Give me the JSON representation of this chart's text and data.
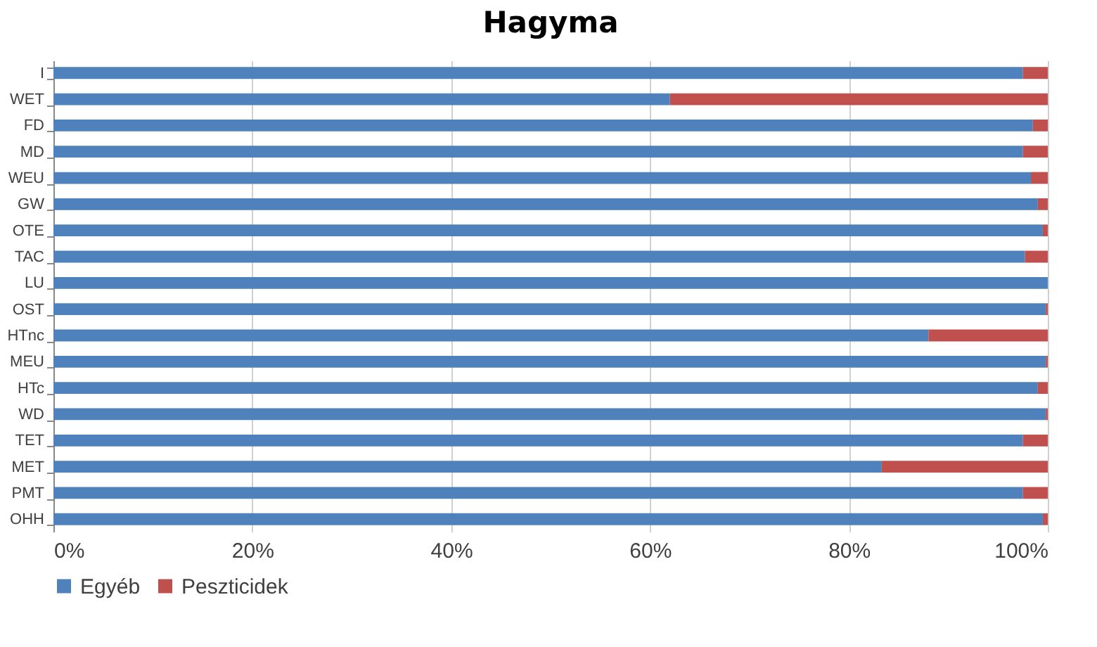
{
  "chart_data": {
    "type": "bar",
    "orientation": "horizontal",
    "stacked": true,
    "title": "Hagyma",
    "categories": [
      "I",
      "WET",
      "FD",
      "MD",
      "WEU",
      "GW",
      "OTE",
      "TAC",
      "LU",
      "OST",
      "HTnc",
      "MEU",
      "HTc",
      "WD",
      "TET",
      "MET",
      "PMT",
      "OHH"
    ],
    "series": [
      {
        "name": "Egyéb",
        "color": "#4f81bd",
        "values": [
          97.5,
          62,
          98.5,
          97.5,
          98.3,
          99,
          99.5,
          97.7,
          100,
          99.8,
          88,
          99.8,
          99,
          99.8,
          97.5,
          83.3,
          97.5,
          99.5
        ]
      },
      {
        "name": "Peszticidek",
        "color": "#c0504d",
        "values": [
          2.5,
          38,
          1.5,
          2.5,
          1.7,
          1,
          0.5,
          2.3,
          0,
          0.2,
          12,
          0.2,
          1,
          0.2,
          2.5,
          16.7,
          2.5,
          0.5
        ]
      }
    ],
    "xlim": [
      0,
      100
    ],
    "xticks": [
      {
        "value": 0,
        "label": "0%"
      },
      {
        "value": 20,
        "label": "20%"
      },
      {
        "value": 40,
        "label": "40%"
      },
      {
        "value": 60,
        "label": "60%"
      },
      {
        "value": 80,
        "label": "80%"
      },
      {
        "value": 100,
        "label": "100%"
      }
    ],
    "grid": "x",
    "legend": "bottom"
  }
}
